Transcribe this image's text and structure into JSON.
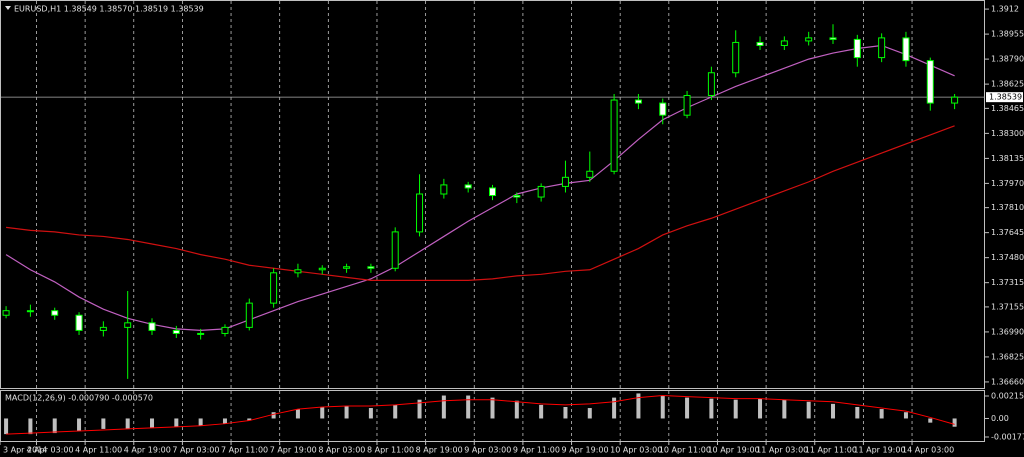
{
  "chart_data": [
    {
      "type": "candlestick",
      "title": "EURUSD,H1 1.38549 1.38570 1.38519 1.38539",
      "x": [
        -5,
        -1,
        3,
        7,
        11,
        15,
        19,
        23,
        27,
        31,
        35,
        39,
        43,
        47,
        51,
        55,
        59,
        63,
        67,
        71,
        75,
        79,
        83,
        87,
        91,
        95,
        99,
        103,
        107,
        111,
        115,
        119,
        123,
        127,
        131,
        135,
        139,
        143,
        147,
        151
      ],
      "open": [
        1.371,
        1.3713,
        1.3713,
        1.371,
        1.37,
        1.3702,
        1.3705,
        1.37,
        1.3698,
        1.3698,
        1.3702,
        1.3718,
        1.3738,
        1.374,
        1.3741,
        1.3742,
        1.3741,
        1.3765,
        1.379,
        1.3796,
        1.3794,
        1.3789,
        1.3788,
        1.3795,
        1.3801,
        1.3805,
        1.3852,
        1.385,
        1.3842,
        1.3855,
        1.387,
        1.389,
        1.3888,
        1.3891,
        1.3893,
        1.3892,
        1.388,
        1.3893,
        1.3878,
        1.385
      ],
      "high": [
        1.3716,
        1.3717,
        1.3715,
        1.3712,
        1.3706,
        1.3726,
        1.3708,
        1.3703,
        1.3701,
        1.3704,
        1.3721,
        1.3741,
        1.3744,
        1.3743,
        1.3744,
        1.3744,
        1.3768,
        1.3803,
        1.38,
        1.3798,
        1.3796,
        1.3791,
        1.3797,
        1.3812,
        1.3818,
        1.3856,
        1.3856,
        1.3853,
        1.3858,
        1.3874,
        1.3898,
        1.3894,
        1.3894,
        1.3897,
        1.3902,
        1.3895,
        1.3896,
        1.3897,
        1.388,
        1.3856
      ],
      "low": [
        1.3708,
        1.3709,
        1.3707,
        1.3697,
        1.3696,
        1.3668,
        1.3697,
        1.3695,
        1.3694,
        1.3696,
        1.37,
        1.3715,
        1.3735,
        1.3737,
        1.3738,
        1.3738,
        1.3739,
        1.3762,
        1.3787,
        1.3791,
        1.3786,
        1.3784,
        1.3785,
        1.3791,
        1.3798,
        1.3803,
        1.3846,
        1.3836,
        1.384,
        1.3852,
        1.3867,
        1.3885,
        1.3885,
        1.3888,
        1.3889,
        1.3874,
        1.3877,
        1.3874,
        1.3845,
        1.3846
      ],
      "close": [
        1.3713,
        1.3713,
        1.371,
        1.37,
        1.3702,
        1.3705,
        1.37,
        1.3698,
        1.3698,
        1.3702,
        1.3718,
        1.3738,
        1.374,
        1.3741,
        1.3742,
        1.3741,
        1.3765,
        1.379,
        1.3796,
        1.3794,
        1.3789,
        1.3788,
        1.3795,
        1.3801,
        1.3805,
        1.3852,
        1.385,
        1.3842,
        1.3855,
        1.387,
        1.389,
        1.3888,
        1.3891,
        1.3893,
        1.3892,
        1.388,
        1.3893,
        1.3878,
        1.385,
        1.38539
      ],
      "up_color": "#00ff00",
      "down_color": "#ffffff",
      "overlays": [
        {
          "color": "#c060c0",
          "values": [
            1.375,
            1.374,
            1.3732,
            1.3722,
            1.3714,
            1.3708,
            1.3704,
            1.3701,
            1.37,
            1.3701,
            1.3707,
            1.3713,
            1.3719,
            1.3724,
            1.3729,
            1.3734,
            1.3742,
            1.3752,
            1.3762,
            1.3772,
            1.3781,
            1.379,
            1.3794,
            1.3797,
            1.3799,
            1.3812,
            1.3826,
            1.3839,
            1.3847,
            1.3854,
            1.3861,
            1.3867,
            1.3873,
            1.3879,
            1.3883,
            1.3886,
            1.3888,
            1.3882,
            1.3875,
            1.3868
          ]
        },
        {
          "color": "#d01010",
          "values": [
            1.3768,
            1.3766,
            1.3765,
            1.3763,
            1.3762,
            1.376,
            1.3757,
            1.3754,
            1.375,
            1.3747,
            1.3743,
            1.3741,
            1.3739,
            1.3737,
            1.3735,
            1.3733,
            1.3733,
            1.3733,
            1.3733,
            1.3733,
            1.3734,
            1.3736,
            1.3737,
            1.3739,
            1.374,
            1.3747,
            1.3754,
            1.3763,
            1.3769,
            1.3774,
            1.378,
            1.3786,
            1.3792,
            1.3798,
            1.3805,
            1.3811,
            1.3817,
            1.3823,
            1.3829,
            1.3835
          ]
        }
      ],
      "current_price": 1.38539,
      "xlim": [
        -6,
        156
      ],
      "xticks": [
        {
          "value": -6,
          "label": "3 Apr 2014"
        },
        {
          "value": 0,
          "label": "4 Apr 03:00"
        },
        {
          "value": 8,
          "label": "4 Apr 11:00"
        },
        {
          "value": 16,
          "label": "4 Apr 19:00"
        },
        {
          "value": 24,
          "label": "7 Apr 03:00"
        },
        {
          "value": 32,
          "label": "7 Apr 11:00"
        },
        {
          "value": 40,
          "label": "7 Apr 19:00"
        },
        {
          "value": 48,
          "label": "8 Apr 03:00"
        },
        {
          "value": 56,
          "label": "8 Apr 11:00"
        },
        {
          "value": 64,
          "label": "8 Apr 19:00"
        },
        {
          "value": 72,
          "label": "9 Apr 03:00"
        },
        {
          "value": 80,
          "label": "9 Apr 11:00"
        },
        {
          "value": 88,
          "label": "9 Apr 19:00"
        },
        {
          "value": 96,
          "label": "10 Apr 03:00"
        },
        {
          "value": 104,
          "label": "10 Apr 11:00"
        },
        {
          "value": 112,
          "label": "10 Apr 19:00"
        },
        {
          "value": 120,
          "label": "11 Apr 03:00"
        },
        {
          "value": 128,
          "label": "11 Apr 11:00"
        },
        {
          "value": 136,
          "label": "11 Apr 19:00"
        },
        {
          "value": 144,
          "label": "14 Apr 03:00"
        }
      ],
      "ylim": [
        1.3662,
        1.3918
      ],
      "yticks": [
        1.3912,
        1.38955,
        {
          "value": 1.3879,
          "label": "1.38790"
        },
        1.38625,
        1.38465,
        {
          "value": 1.383,
          "label": "1.38300"
        },
        1.38135,
        {
          "value": 1.3797,
          "label": "1.37970"
        },
        {
          "value": 1.3781,
          "label": "1.37810"
        },
        1.37645,
        {
          "value": 1.3748,
          "label": "1.37480"
        },
        1.37315,
        1.37155,
        {
          "value": 1.3699,
          "label": "1.36990"
        },
        1.36825,
        {
          "value": 1.3666,
          "label": "1.36660"
        }
      ],
      "grid": true
    },
    {
      "type": "bar",
      "title": "MACD(12,26,9) -0.000790 -0.000570",
      "color": "#c0c0c0",
      "values": [
        -0.0015,
        -0.0015,
        -0.0014,
        -0.0012,
        -0.001,
        -0.001,
        -0.0009,
        -0.0008,
        -0.0007,
        -0.0005,
        -0.0002,
        0.0006,
        0.0009,
        0.0011,
        0.0012,
        0.001,
        0.0013,
        0.0018,
        0.0022,
        0.0022,
        0.002,
        0.0017,
        0.0013,
        0.0011,
        0.001,
        0.002,
        0.0024,
        0.0022,
        0.002,
        0.0019,
        0.0018,
        0.0019,
        0.0018,
        0.0016,
        0.0014,
        0.0011,
        0.0009,
        0.0006,
        -0.0004,
        -0.00079
      ],
      "line": {
        "color": "#ff0000",
        "values": [
          -0.0015,
          -0.0014,
          -0.0013,
          -0.0012,
          -0.0011,
          -0.001,
          -0.0009,
          -0.0008,
          -0.0007,
          -0.0005,
          -0.0002,
          0.0004,
          0.0009,
          0.0011,
          0.0012,
          0.0012,
          0.0013,
          0.0015,
          0.0017,
          0.0018,
          0.0018,
          0.0016,
          0.0014,
          0.0013,
          0.0014,
          0.0016,
          0.002,
          0.0022,
          0.0021,
          0.002,
          0.0019,
          0.0019,
          0.0018,
          0.0017,
          0.0016,
          0.0013,
          0.001,
          0.0007,
          0.0001,
          -0.00057
        ]
      },
      "ylim": [
        -0.00216,
        0.00273
      ],
      "yticks": [
        0.002155,
        {
          "value": 0,
          "label": "0.00"
        },
        -0.001775
      ]
    }
  ]
}
